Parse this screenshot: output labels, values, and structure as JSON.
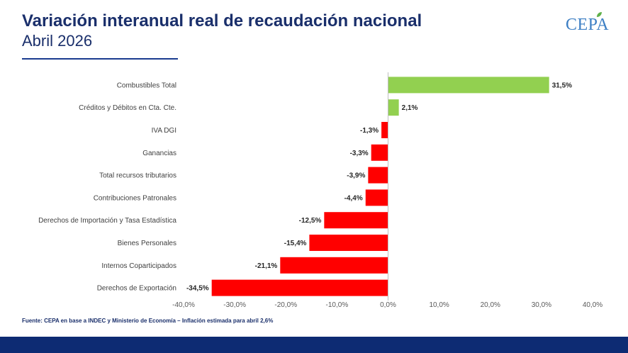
{
  "header": {
    "title": "Variación interanual real de recaudación nacional",
    "subtitle": "Abril 2026"
  },
  "logo": {
    "text": "CEPA"
  },
  "footer": {
    "source": "Fuente: CEPA en base a INDEC y Ministerio de Economía – Inflación estimada para abril 2,6%"
  },
  "colors": {
    "positive": "#92d050",
    "negative": "#ff0000",
    "title": "#1a2f6b",
    "footer_bar": "#0d2b73"
  },
  "chart_data": {
    "type": "bar",
    "orientation": "horizontal",
    "categories": [
      "Combustibles Total",
      "Créditos y Débitos en Cta. Cte.",
      "IVA DGI",
      "Ganancias",
      "Total recursos tributarios",
      "Contribuciones Patronales",
      "Derechos de Importación y Tasa Estadística",
      "Bienes Personales",
      "Internos Coparticipados",
      "Derechos de Exportación"
    ],
    "values": [
      31.5,
      2.1,
      -1.3,
      -3.3,
      -3.9,
      -4.4,
      -12.5,
      -15.4,
      -21.1,
      -34.5
    ],
    "value_labels": [
      "31,5%",
      "2,1%",
      "-1,3%",
      "-3,3%",
      "-3,9%",
      "-4,4%",
      "-12,5%",
      "-15,4%",
      "-21,1%",
      "-34,5%"
    ],
    "xlim": [
      -40,
      40
    ],
    "x_ticks": [
      -40,
      -30,
      -20,
      -10,
      0,
      10,
      20,
      30,
      40
    ],
    "x_tick_labels": [
      "-40,0%",
      "-30,0%",
      "-20,0%",
      "-10,0%",
      "0,0%",
      "10,0%",
      "20,0%",
      "30,0%",
      "40,0%"
    ],
    "grid": false,
    "legend": false
  }
}
